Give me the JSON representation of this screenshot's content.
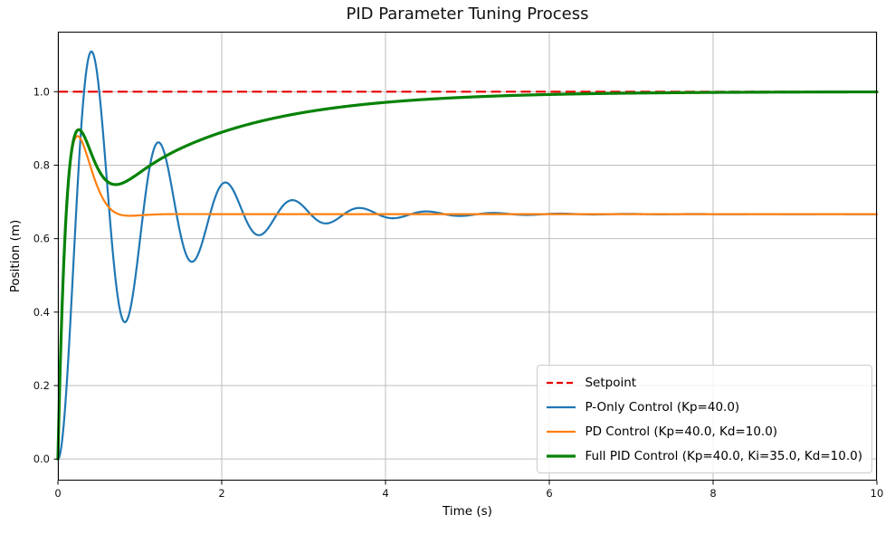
{
  "title": "PID Parameter Tuning Process",
  "axes": {
    "xlabel": "Time (s)",
    "ylabel": "Position (m)",
    "xlim": [
      0,
      10
    ],
    "ylim": [
      -0.0587,
      1.1634
    ],
    "xtick_values": [
      0,
      2,
      4,
      6,
      8,
      10
    ],
    "xtick_labels": [
      "0",
      "2",
      "4",
      "6",
      "8",
      "10"
    ],
    "ytick_values": [
      0.0,
      0.2,
      0.4,
      0.6,
      0.8,
      1.0
    ],
    "ytick_labels": [
      "0.0",
      "0.2",
      "0.4",
      "0.6",
      "0.8",
      "1.0"
    ],
    "grid": true
  },
  "colors": {
    "grid": "#bdbdbd",
    "spine": "#000000",
    "tick_text": "#111111",
    "background": "#ffffff",
    "legend_border": "#cccccc",
    "setpoint_red": "#e80000",
    "p_only_blue": "#1f77b4",
    "pd_orange": "#ff7f0e",
    "pid_green": "#078207"
  },
  "chart_data": {
    "type": "line",
    "title": "PID Parameter Tuning Process",
    "xlabel": "Time (s)",
    "ylabel": "Position (m)",
    "xlim": [
      0,
      10
    ],
    "ylim": [
      -0.0587,
      1.1634
    ],
    "grid": true,
    "legend_position": "lower right",
    "sample_step": 0.01,
    "series": [
      {
        "name": "Setpoint",
        "color": "#e80000",
        "style": "dashed",
        "dash": [
          11,
          5.5
        ],
        "width": 2.2,
        "model": {
          "steady": 1.0,
          "modes": []
        },
        "samples": {
          "t": [
            0,
            10
          ],
          "v": [
            1.0,
            1.0
          ]
        },
        "key_points": {
          "constant_value": 1.0
        }
      },
      {
        "name": "P-Only Control (Kp=40.0)",
        "color": "#1f77b4",
        "style": "solid",
        "width": 2.2,
        "model": {
          "steady": 0.6667,
          "modes": [
            {
              "sigma": 1.0,
              "omega": 7.681,
              "a": -0.6667,
              "b": -0.0868
            }
          ]
        },
        "samples": {
          "t": [
            0,
            0.41,
            0.82,
            1.23,
            1.64,
            2.05,
            2.45,
            2.86,
            3.27,
            3.68,
            4.09,
            4.5,
            4.91,
            5.32,
            6,
            7,
            8,
            9,
            10
          ],
          "v": [
            0,
            1.11,
            0.37,
            0.86,
            0.54,
            0.75,
            0.61,
            0.7,
            0.64,
            0.68,
            0.656,
            0.674,
            0.662,
            0.67,
            0.667,
            0.667,
            0.667,
            0.667,
            0.667
          ]
        },
        "key_points": {
          "peaks": [
            [
              0.41,
              1.11
            ],
            [
              1.23,
              0.86
            ],
            [
              2.05,
              0.75
            ],
            [
              2.86,
              0.7
            ],
            [
              3.68,
              0.68
            ]
          ],
          "troughs": [
            [
              0.82,
              0.37
            ],
            [
              1.64,
              0.54
            ],
            [
              2.45,
              0.61
            ],
            [
              3.27,
              0.64
            ]
          ],
          "oscillation_period_s": 0.82,
          "steady_state": 0.667
        }
      },
      {
        "name": "PD Control (Kp=40.0, Kd=10.0)",
        "color": "#ff7f0e",
        "style": "solid",
        "width": 2.2,
        "model": {
          "steady": 0.6667,
          "modes": [
            {
              "sigma": 6.0,
              "omega": 4.899,
              "a": -0.6667,
              "b": 1.25
            }
          ]
        },
        "samples": {
          "t": [
            0,
            0.05,
            0.1,
            0.15,
            0.2,
            0.25,
            0.3,
            0.35,
            0.4,
            0.45,
            0.5,
            0.6,
            0.7,
            0.8,
            1.0,
            1.5,
            2,
            3,
            4,
            5,
            6,
            7,
            8,
            9,
            10
          ],
          "v": [
            0,
            0.42,
            0.68,
            0.82,
            0.87,
            0.88,
            0.86,
            0.84,
            0.8,
            0.76,
            0.73,
            0.69,
            0.671,
            0.664,
            0.666,
            0.667,
            0.667,
            0.667,
            0.667,
            0.667,
            0.667,
            0.667,
            0.667,
            0.667,
            0.667
          ]
        },
        "key_points": {
          "peak": [
            0.25,
            0.88
          ],
          "steady_state": 0.667
        }
      },
      {
        "name": "Full PID Control (Kp=40.0, Ki=35.0, Kd=10.0)",
        "color": "#078207",
        "style": "solid",
        "width": 3.2,
        "model": {
          "steady": 1.0,
          "modes": [
            {
              "sigma": 0.669,
              "omega": 0,
              "a": -0.421,
              "b": 0
            },
            {
              "sigma": 5.666,
              "omega": 4.497,
              "a": -0.579,
              "b": 1.432
            }
          ]
        },
        "samples": {
          "t": [
            0,
            0.05,
            0.1,
            0.15,
            0.2,
            0.25,
            0.3,
            0.4,
            0.5,
            0.64,
            0.8,
            1.0,
            1.25,
            1.5,
            2.0,
            2.5,
            3.0,
            3.5,
            4.0,
            4.5,
            5.0,
            5.5,
            6.0,
            7.0,
            8.0,
            9.0,
            10.0
          ],
          "v": [
            0,
            0.41,
            0.66,
            0.81,
            0.88,
            0.9,
            0.89,
            0.83,
            0.78,
            0.75,
            0.755,
            0.78,
            0.81,
            0.835,
            0.889,
            0.921,
            0.943,
            0.959,
            0.971,
            0.979,
            0.985,
            0.989,
            0.992,
            0.996,
            0.998,
            0.999,
            1.0
          ]
        },
        "key_points": {
          "peak": [
            0.24,
            0.9
          ],
          "dip": [
            0.64,
            0.75
          ],
          "steady_state": 1.0
        }
      }
    ]
  },
  "legend": {
    "items": [
      "Setpoint",
      "P-Only Control (Kp=40.0)",
      "PD Control (Kp=40.0, Kd=10.0)",
      "Full PID Control (Kp=40.0, Ki=35.0, Kd=10.0)"
    ]
  }
}
